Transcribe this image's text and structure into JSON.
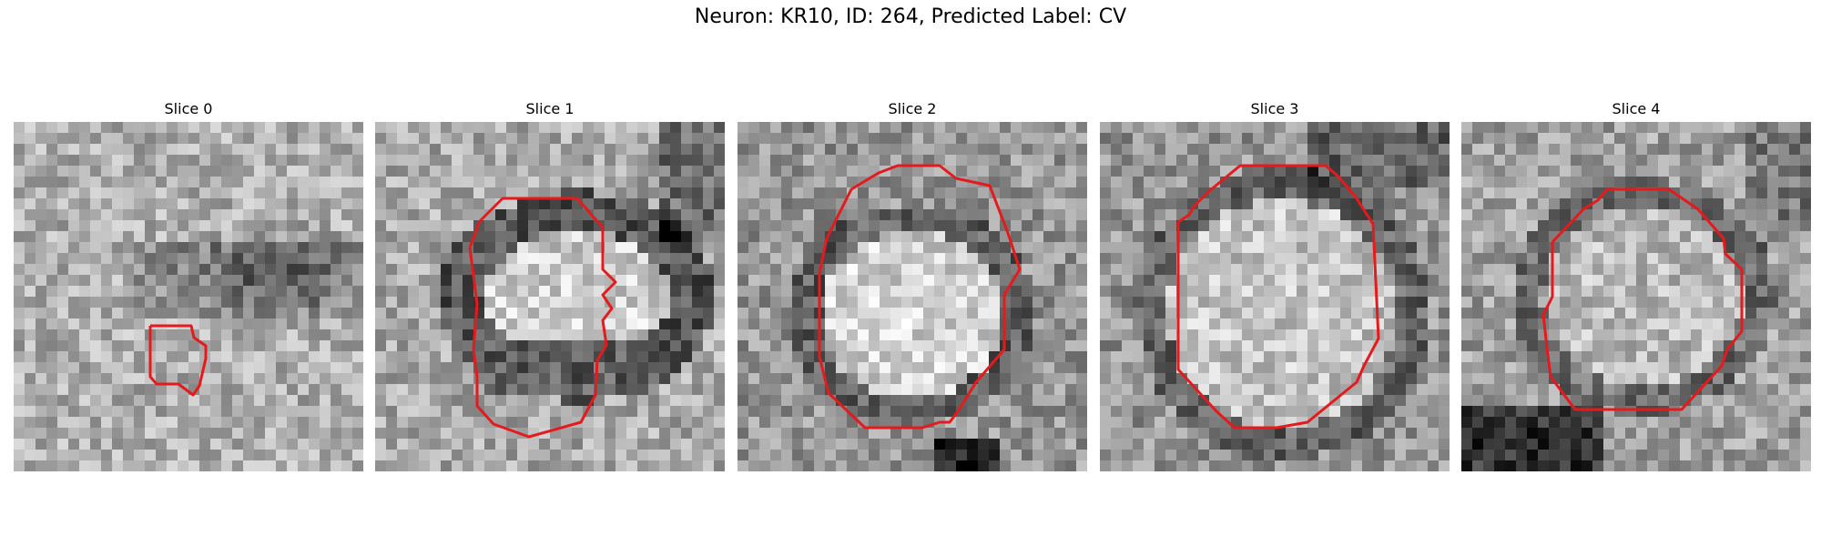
{
  "figure": {
    "title": "Neuron: KR10, ID: 264, Predicted Label: CV"
  },
  "slices": [
    {
      "label": "Slice 0"
    },
    {
      "label": "Slice 1"
    },
    {
      "label": "Slice 2"
    },
    {
      "label": "Slice 3"
    },
    {
      "label": "Slice 4"
    }
  ],
  "style": {
    "contour_color": "#e41a1c"
  }
}
